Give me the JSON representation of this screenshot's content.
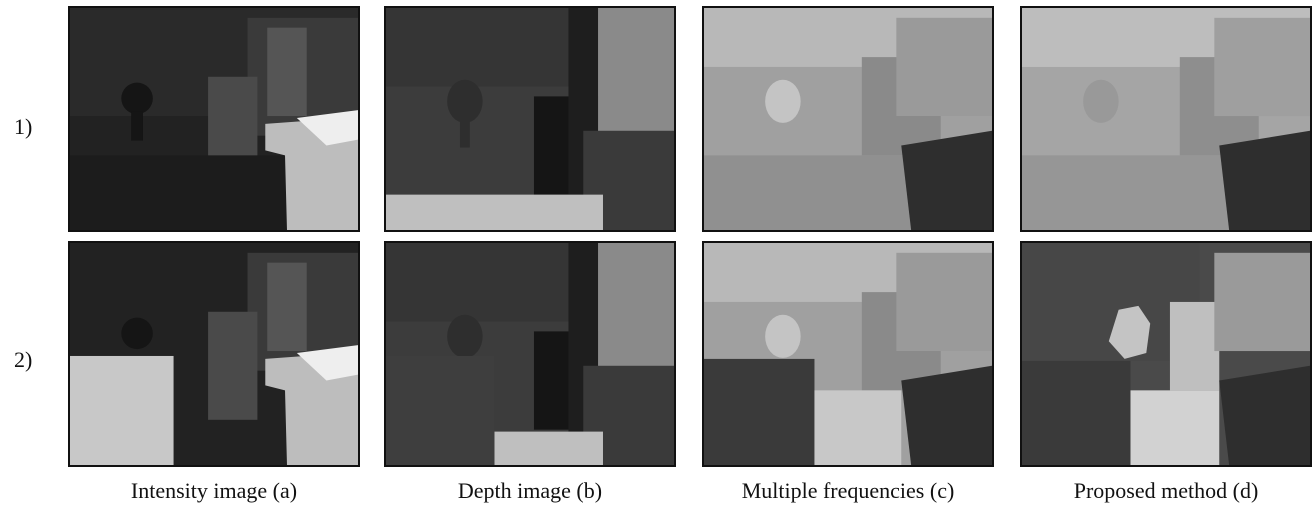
{
  "rows": [
    {
      "label": "1)"
    },
    {
      "label": "2)"
    }
  ],
  "columns": [
    {
      "caption": "Intensity image (a)"
    },
    {
      "caption": "Depth image (b)"
    },
    {
      "caption": "Multiple frequencies (c)"
    },
    {
      "caption": "Proposed method (d)"
    }
  ]
}
